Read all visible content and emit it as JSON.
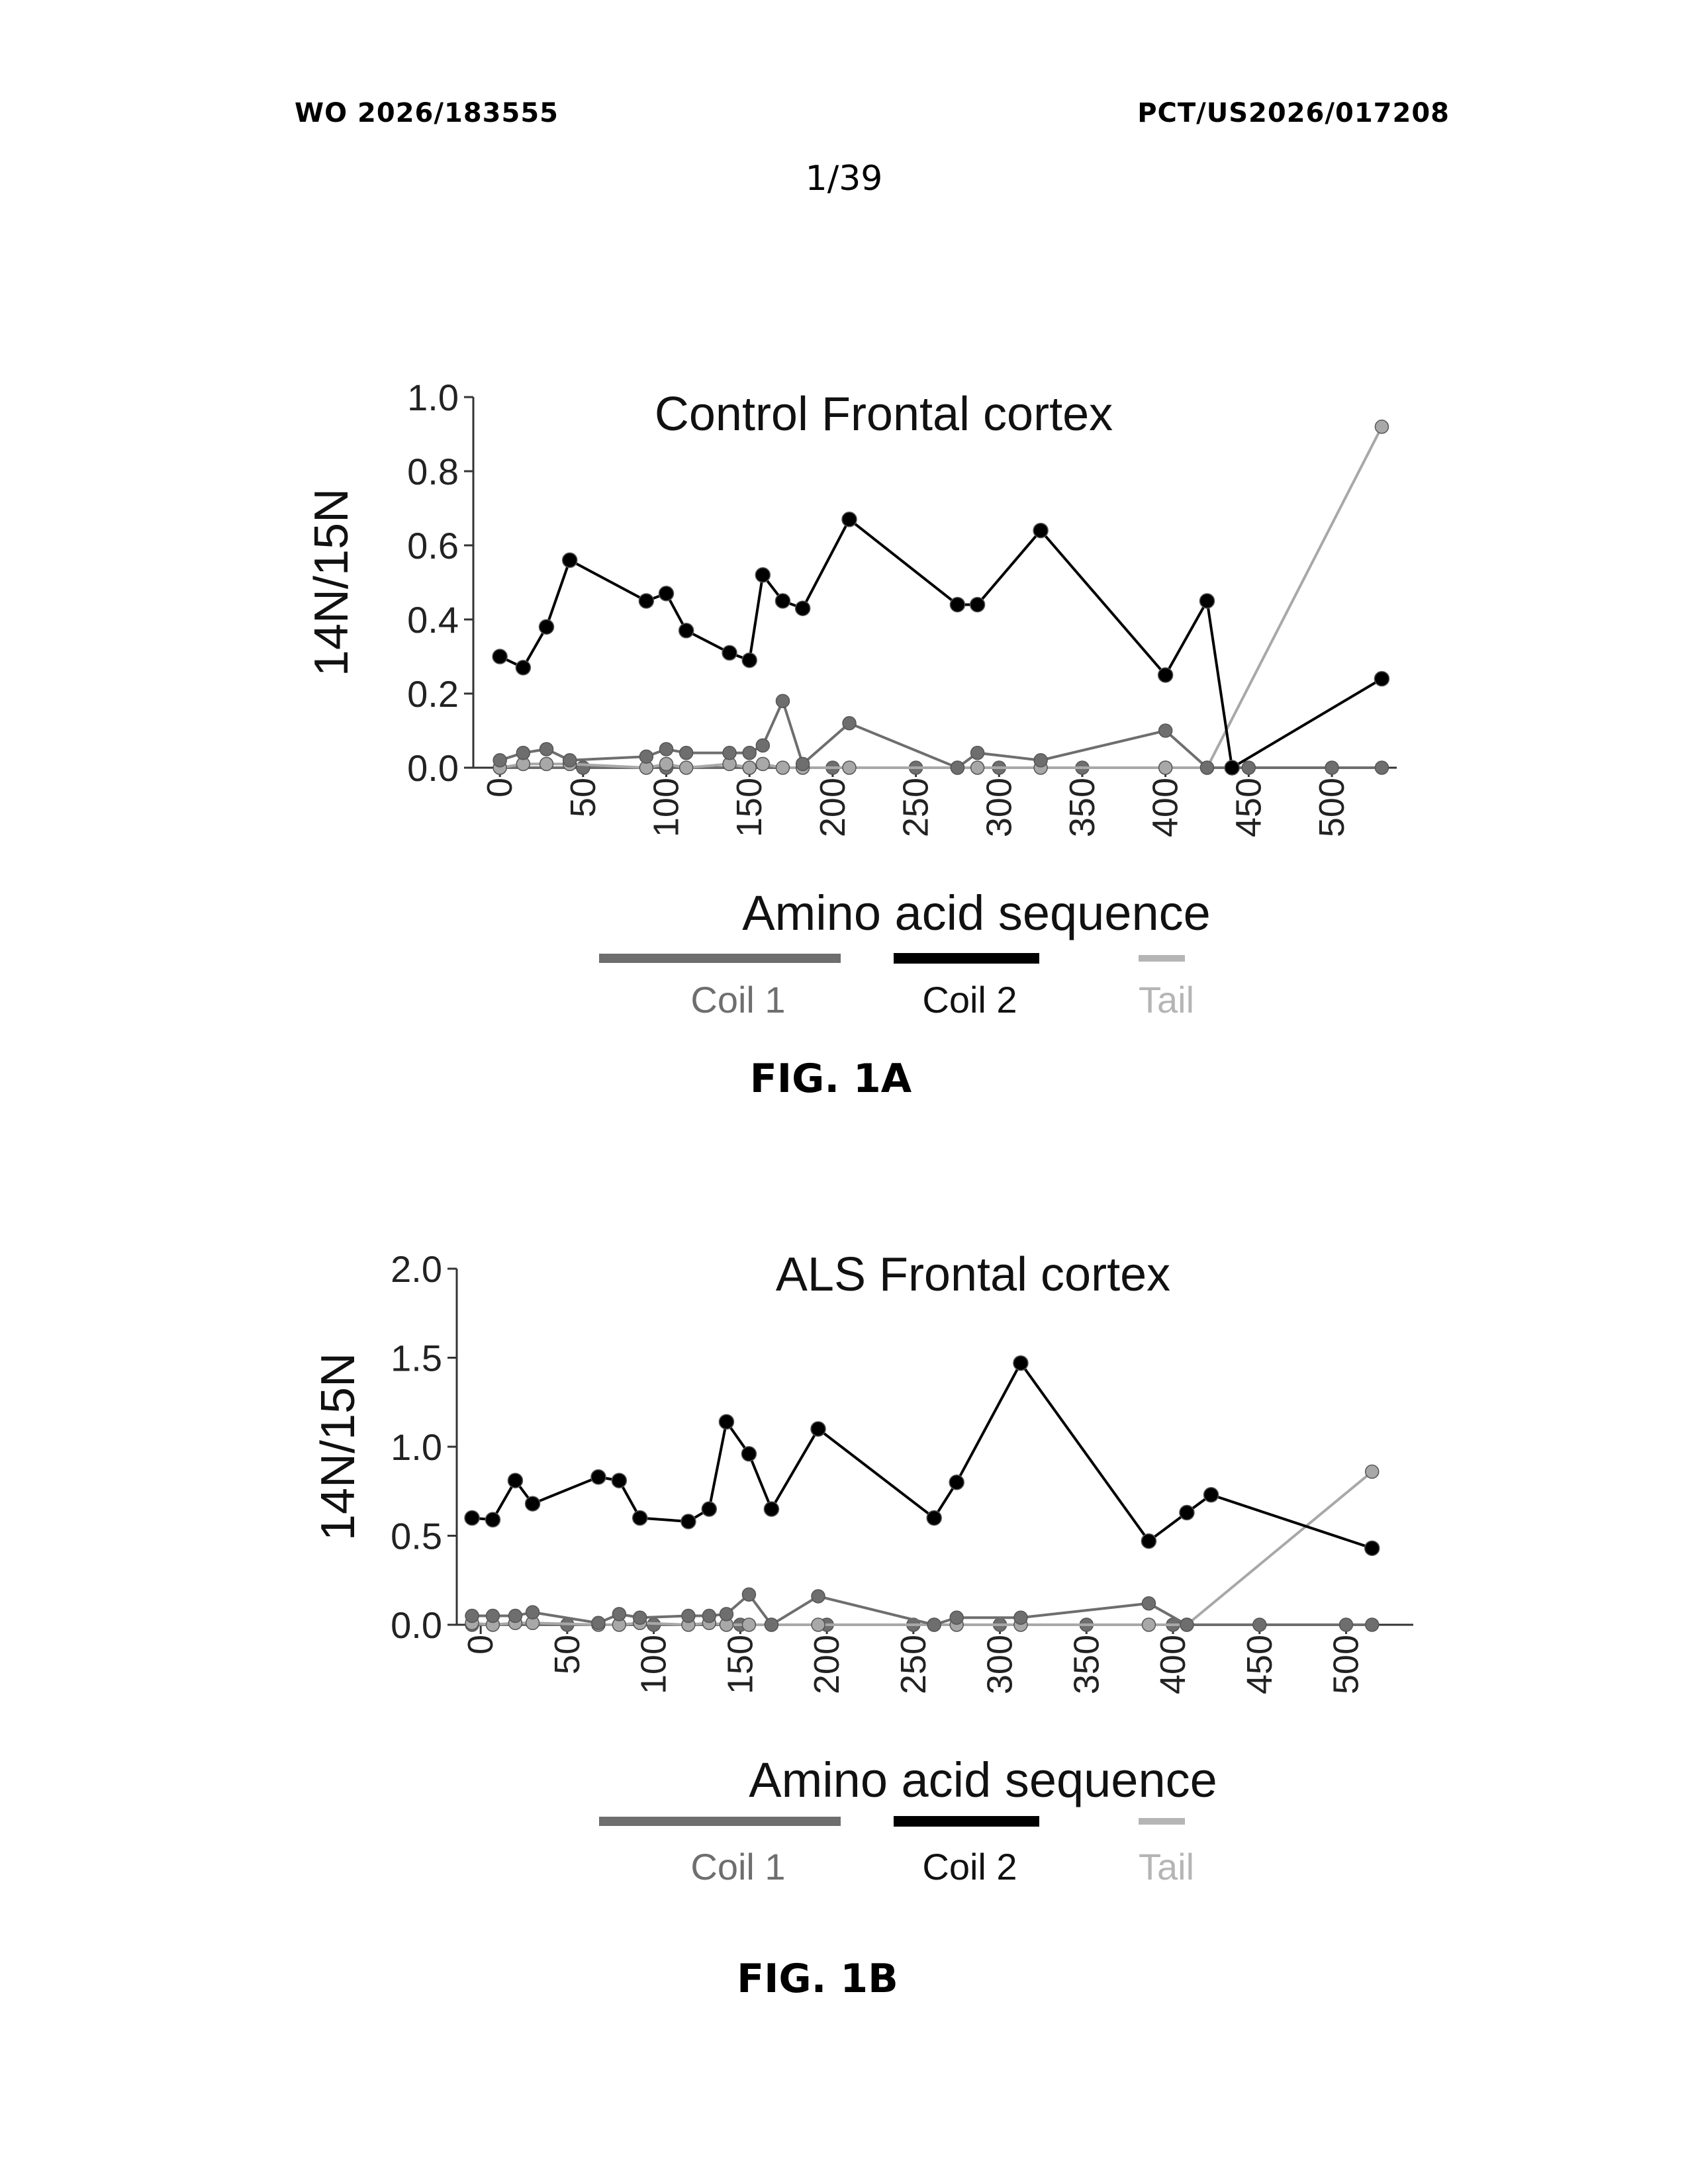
{
  "header": {
    "left": "WO 2026/183555",
    "right": "PCT/US2026/017208",
    "page": "1/39"
  },
  "legend": [
    {
      "name": "Coil 1",
      "color": "#6e6e6e"
    },
    {
      "name": "Coil 2",
      "color": "#000000"
    },
    {
      "name": "Tail",
      "color": "#b5b5b5"
    }
  ],
  "captions": {
    "a": "FIG. 1A",
    "b": "FIG. 1B"
  },
  "chart_data": [
    {
      "type": "line",
      "title": "Control Frontal cortex",
      "xlabel": "Amino acid sequence",
      "ylabel": "14N/15N",
      "ylim": [
        0,
        1.0
      ],
      "yticks": [
        "0.0",
        "0.2",
        "0.4",
        "0.6",
        "0.8",
        "1.0"
      ],
      "xlim": [
        -10,
        535
      ],
      "xticks": [
        "0",
        "50",
        "100",
        "150",
        "200",
        "250",
        "300",
        "350",
        "400",
        "450",
        "500"
      ],
      "series": [
        {
          "color": "#000000",
          "x": [
            0,
            14,
            28,
            42,
            88,
            100,
            112,
            138,
            150,
            158,
            170,
            182,
            210,
            275,
            287,
            325,
            400,
            425,
            440,
            530
          ],
          "y": [
            0.3,
            0.27,
            0.38,
            0.56,
            0.45,
            0.47,
            0.37,
            0.31,
            0.29,
            0.52,
            0.45,
            0.43,
            0.67,
            0.44,
            0.44,
            0.64,
            0.25,
            0.45,
            0.0,
            0.24
          ]
        },
        {
          "color": "#6e6e6e",
          "x": [
            0,
            14,
            28,
            42,
            88,
            100,
            112,
            138,
            150,
            158,
            170,
            182,
            210,
            275,
            287,
            325,
            400,
            425
          ],
          "y": [
            0.02,
            0.04,
            0.05,
            0.02,
            0.03,
            0.05,
            0.04,
            0.04,
            0.04,
            0.06,
            0.18,
            0.01,
            0.12,
            0.0,
            0.04,
            0.02,
            0.1,
            0.0
          ]
        },
        {
          "color": "#a8a8a8",
          "x": [
            0,
            14,
            28,
            42,
            88,
            100,
            112,
            138,
            150,
            158,
            170,
            182,
            210,
            275,
            287,
            325,
            400,
            425,
            530
          ],
          "y": [
            0.0,
            0.01,
            0.01,
            0.01,
            0.0,
            0.01,
            0.0,
            0.01,
            0.0,
            0.01,
            0.0,
            0.0,
            0.0,
            0.0,
            0.0,
            0.0,
            0.0,
            0.0,
            0.92
          ]
        },
        {
          "color": "#6e6e6e",
          "x": [
            0,
            50,
            100,
            150,
            200,
            250,
            300,
            350,
            400,
            450,
            500,
            530
          ],
          "y": [
            0.0,
            0.0,
            0.0,
            0.0,
            0.0,
            0.0,
            0.0,
            0.0,
            0.0,
            0.0,
            0.0,
            0.0
          ]
        }
      ]
    },
    {
      "type": "line",
      "title": "ALS Frontal cortex",
      "xlabel": "Amino acid sequence",
      "ylabel": "14N/15N",
      "ylim": [
        0,
        2.0
      ],
      "yticks": [
        "0.0",
        "0.5",
        "1.0",
        "1.5",
        "2.0"
      ],
      "xlim": [
        -10,
        535
      ],
      "xticks": [
        "0",
        "50",
        "100",
        "150",
        "200",
        "250",
        "300",
        "350",
        "400",
        "450",
        "500"
      ],
      "series": [
        {
          "color": "#000000",
          "x": [
            -5,
            7,
            20,
            30,
            68,
            80,
            92,
            120,
            132,
            142,
            155,
            168,
            195,
            262,
            275,
            312,
            386,
            408,
            422,
            515
          ],
          "y": [
            0.6,
            0.59,
            0.81,
            0.68,
            0.83,
            0.81,
            0.6,
            0.58,
            0.65,
            1.14,
            0.96,
            0.65,
            1.1,
            0.6,
            0.8,
            1.47,
            0.47,
            0.63,
            0.73,
            0.43
          ]
        },
        {
          "color": "#6e6e6e",
          "x": [
            -5,
            7,
            20,
            30,
            68,
            80,
            92,
            120,
            132,
            142,
            155,
            168,
            195,
            262,
            275,
            312,
            386,
            408
          ],
          "y": [
            0.05,
            0.05,
            0.05,
            0.07,
            0.01,
            0.06,
            0.04,
            0.05,
            0.05,
            0.06,
            0.17,
            0.0,
            0.16,
            0.0,
            0.04,
            0.04,
            0.12,
            0.0
          ]
        },
        {
          "color": "#a8a8a8",
          "x": [
            -5,
            7,
            20,
            30,
            68,
            80,
            92,
            120,
            132,
            142,
            155,
            168,
            195,
            262,
            275,
            312,
            386,
            408,
            515
          ],
          "y": [
            0.01,
            0.0,
            0.01,
            0.01,
            0.0,
            0.0,
            0.01,
            0.0,
            0.01,
            0.0,
            0.0,
            0.0,
            0.0,
            0.0,
            0.0,
            0.0,
            0.0,
            0.0,
            0.86
          ]
        },
        {
          "color": "#6e6e6e",
          "x": [
            -5,
            50,
            100,
            150,
            200,
            250,
            300,
            350,
            400,
            450,
            500,
            515
          ],
          "y": [
            0.0,
            0.0,
            0.0,
            0.0,
            0.0,
            0.0,
            0.0,
            0.0,
            0.0,
            0.0,
            0.0,
            0.0
          ]
        }
      ]
    }
  ]
}
